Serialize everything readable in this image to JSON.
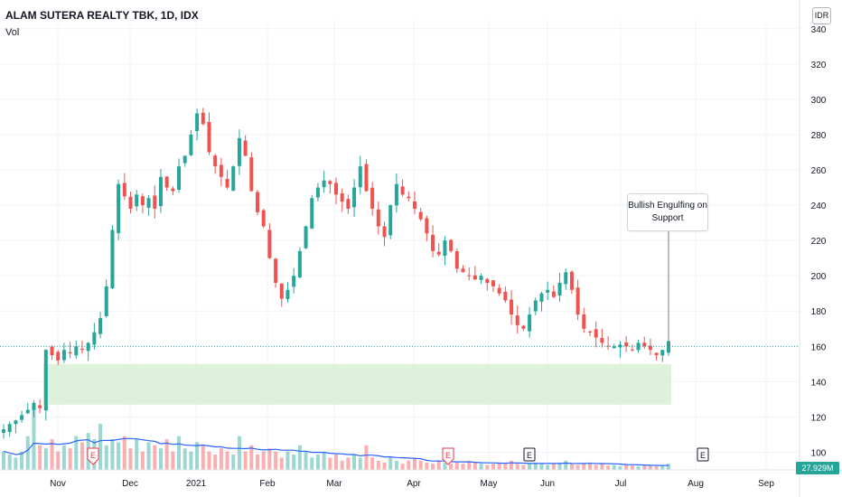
{
  "header": {
    "title": "ALAM SUTERA REALTY TBK, 1D, IDX",
    "volume_label": "Vol",
    "currency": "IDR"
  },
  "annotation": {
    "text_line1": "Bullish Engulfing on",
    "text_line2": "Support"
  },
  "volume_badge": "27.929M",
  "earnings_marker": "E",
  "colors": {
    "up": "#26a69a",
    "down": "#ef5350",
    "zone": "#d8efd4",
    "ma": "#2962ff"
  },
  "chart_data": {
    "type": "candlestick",
    "ylim": [
      90,
      345
    ],
    "y_ticks": [
      100,
      120,
      140,
      160,
      180,
      200,
      220,
      240,
      260,
      280,
      300,
      320,
      340
    ],
    "x_ticks": [
      "Nov",
      "Dec",
      "2021",
      "Feb",
      "Mar",
      "Apr",
      "May",
      "Jun",
      "Jul",
      "Aug",
      "Sep"
    ],
    "support_zone": [
      127,
      150
    ],
    "price_line": 160,
    "earnings_markers": [
      {
        "month_index": 0.65,
        "style": "red"
      },
      {
        "month_index": 5.55,
        "style": "red"
      },
      {
        "month_index": 6.55,
        "style": "dark"
      },
      {
        "month_index": 8.75,
        "style": "dark"
      }
    ],
    "close_series": [
      113,
      116,
      118,
      121,
      124,
      128,
      125,
      158,
      155,
      152,
      158,
      156,
      160,
      158,
      162,
      168,
      176,
      194,
      226,
      252,
      245,
      238,
      246,
      240,
      244,
      238,
      256,
      250,
      248,
      262,
      268,
      280,
      292,
      286,
      270,
      262,
      256,
      250,
      262,
      278,
      268,
      248,
      236,
      228,
      210,
      196,
      187,
      192,
      200,
      214,
      228,
      244,
      250,
      254,
      252,
      246,
      242,
      238,
      250,
      262,
      248,
      238,
      228,
      222,
      240,
      252,
      246,
      244,
      238,
      232,
      224,
      214,
      212,
      220,
      214,
      204,
      202,
      200,
      198,
      200,
      196,
      194,
      190,
      186,
      178,
      172,
      170,
      178,
      186,
      190,
      192,
      188,
      196,
      202,
      192,
      178,
      170,
      168,
      165,
      162,
      160,
      160,
      161,
      160,
      158,
      162,
      160,
      158,
      155,
      158,
      163
    ],
    "volume_series_relative": [
      0.3,
      0.25,
      0.2,
      0.3,
      0.55,
      1.0,
      0.4,
      0.35,
      0.5,
      0.3,
      0.4,
      0.35,
      0.55,
      0.45,
      0.6,
      0.5,
      0.75,
      0.4,
      0.5,
      0.45,
      0.55,
      0.35,
      0.5,
      0.3,
      0.45,
      0.4,
      0.35,
      0.5,
      0.3,
      0.55,
      0.35,
      0.3,
      0.45,
      0.4,
      0.3,
      0.25,
      0.35,
      0.3,
      0.25,
      0.55,
      0.3,
      0.4,
      0.25,
      0.3,
      0.35,
      0.3,
      0.2,
      0.3,
      0.25,
      0.4,
      0.3,
      0.2,
      0.25,
      0.3,
      0.2,
      0.25,
      0.15,
      0.2,
      0.25,
      0.2,
      0.4,
      0.2,
      0.15,
      0.12,
      0.2,
      0.15,
      0.1,
      0.15,
      0.2,
      0.15,
      0.12,
      0.1,
      0.15,
      0.12,
      0.1,
      0.12,
      0.1,
      0.15,
      0.12,
      0.1,
      0.08,
      0.1,
      0.12,
      0.1,
      0.15,
      0.1,
      0.08,
      0.1,
      0.12,
      0.1,
      0.08,
      0.1,
      0.12,
      0.15,
      0.1,
      0.08,
      0.1,
      0.12,
      0.08,
      0.1,
      0.07,
      0.08,
      0.06,
      0.08,
      0.07,
      0.06,
      0.08,
      0.07,
      0.06,
      0.08,
      0.1
    ]
  }
}
